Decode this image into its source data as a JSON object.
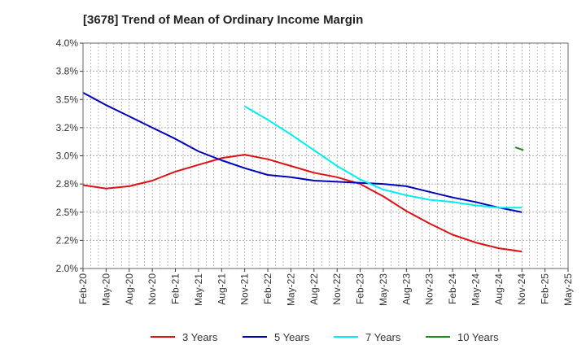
{
  "chart_data": {
    "type": "line",
    "title": "[3678]  Trend of Mean of Ordinary Income Margin",
    "xlabel": "",
    "ylabel": "",
    "x": [
      "Feb-20",
      "May-20",
      "Aug-20",
      "Nov-20",
      "Feb-21",
      "May-21",
      "Aug-21",
      "Nov-21",
      "Feb-22",
      "May-22",
      "Aug-22",
      "Nov-22",
      "Feb-23",
      "May-23",
      "Aug-23",
      "Nov-23",
      "Feb-24",
      "May-24",
      "Aug-24",
      "Nov-24",
      "Feb-25",
      "May-25"
    ],
    "y_ticks": [
      "2.0%",
      "2.2%",
      "2.5%",
      "2.8%",
      "3.0%",
      "3.2%",
      "3.5%",
      "3.8%",
      "4.0%"
    ],
    "ylim": [
      2.0,
      4.0
    ],
    "grid": true,
    "legend_position": "bottom",
    "series": [
      {
        "name": "3 Years",
        "color": "#dd1111",
        "values": [
          2.74,
          2.71,
          2.73,
          2.78,
          2.86,
          2.92,
          2.98,
          3.01,
          2.97,
          2.91,
          2.85,
          2.81,
          2.75,
          2.64,
          2.51,
          2.4,
          2.3,
          2.23,
          2.18,
          2.15,
          null,
          null
        ]
      },
      {
        "name": "5 Years",
        "color": "#0000bb",
        "values": [
          3.56,
          3.45,
          3.35,
          3.25,
          3.15,
          3.04,
          2.96,
          2.89,
          2.83,
          2.81,
          2.78,
          2.77,
          2.76,
          2.75,
          2.73,
          2.68,
          2.63,
          2.59,
          2.54,
          2.5,
          null,
          null
        ]
      },
      {
        "name": "7 Years",
        "color": "#00eeee",
        "values": [
          null,
          null,
          null,
          null,
          null,
          null,
          null,
          3.44,
          3.32,
          3.19,
          3.05,
          2.91,
          2.79,
          2.7,
          2.65,
          2.61,
          2.59,
          2.56,
          2.54,
          2.54,
          null,
          null
        ]
      },
      {
        "name": "10 Years",
        "color": "#228822",
        "values": [
          null,
          null,
          null,
          null,
          null,
          null,
          null,
          null,
          null,
          null,
          null,
          null,
          null,
          null,
          null,
          null,
          null,
          null,
          null,
          3.07,
          null,
          null
        ],
        "tail": [
          3.075,
          3.05
        ]
      }
    ]
  }
}
